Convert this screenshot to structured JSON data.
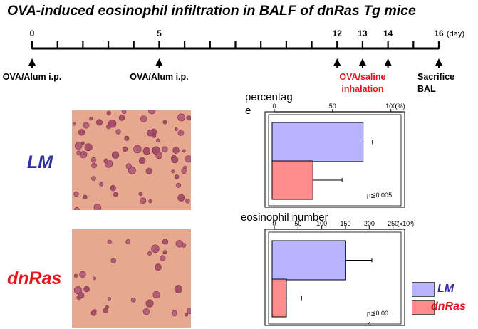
{
  "title": "OVA-induced eosinophil infiltration in BALF of dnRas Tg mice",
  "timeline": {
    "day_labels": [
      {
        "day": 0,
        "label": "0"
      },
      {
        "day": 5,
        "label": "5"
      },
      {
        "day": 12,
        "label": "12"
      },
      {
        "day": 13,
        "label": "13"
      },
      {
        "day": 14,
        "label": "14"
      },
      {
        "day": 16,
        "label": "16"
      }
    ],
    "unit": "(day)",
    "events": [
      {
        "day": 0,
        "lines": [
          "OVA/Alum i.p."
        ],
        "color": "#000000"
      },
      {
        "day": 5,
        "lines": [
          "OVA/Alum i.p."
        ],
        "color": "#000000"
      },
      {
        "day": 12,
        "lines": [],
        "color": "#000000"
      },
      {
        "day": 13,
        "lines": [
          "OVA/saline",
          "inhalation"
        ],
        "color": "#e8141e"
      },
      {
        "day": 14,
        "lines": [],
        "color": "#000000"
      },
      {
        "day": 16,
        "lines": [
          "Sacrifice",
          "BAL"
        ],
        "color": "#000000"
      }
    ]
  },
  "groups": [
    {
      "label": "LM",
      "color": "#3030a0"
    },
    {
      "label": "dnRas",
      "color": "#e8141e"
    }
  ],
  "legend": [
    {
      "label": "LM",
      "swatch": "#b8b4ff",
      "text_color": "#3030a0"
    },
    {
      "label": "dnRas",
      "swatch": "#ff8c8c",
      "text_color": "#e8141e"
    }
  ],
  "colors": {
    "lm_bar": "#b8b4ff",
    "dnras_bar": "#ff8c8c"
  },
  "chart_data": [
    {
      "type": "bar",
      "orientation": "horizontal",
      "title_lines": [
        "percentag",
        "e"
      ],
      "categories": [
        "LM",
        "dnRas"
      ],
      "values": [
        78,
        35
      ],
      "errors": [
        8,
        25
      ],
      "xlim": [
        0,
        110
      ],
      "ticks": [
        0,
        50,
        100
      ],
      "tick_labels": [
        "0",
        "50",
        "100"
      ],
      "unit_label": "(%)",
      "annotation": "p≦0.005"
    },
    {
      "type": "bar",
      "orientation": "horizontal",
      "title_lines": [
        "eosinophil number"
      ],
      "categories": [
        "LM",
        "dnRas"
      ],
      "values": [
        155,
        30
      ],
      "errors": [
        55,
        32
      ],
      "xlim": [
        0,
        270
      ],
      "ticks": [
        0,
        50,
        100,
        150,
        200,
        250
      ],
      "tick_labels": [
        "0",
        "50",
        "100",
        "150",
        "200",
        "250"
      ],
      "unit_label": "(x10³)",
      "annotation": "p≦0.00",
      "annotation_cont": "4"
    }
  ]
}
